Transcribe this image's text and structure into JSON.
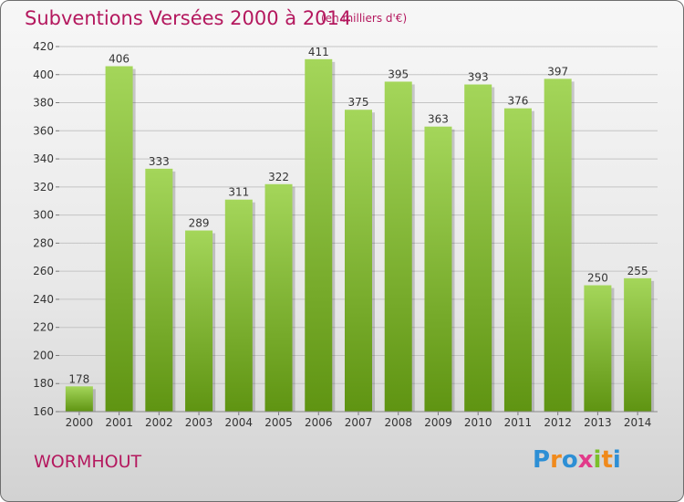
{
  "header": {
    "title": "Subventions Versées 2000 à 2014",
    "subtitle": "(en milliers d'€)"
  },
  "footer": {
    "location": "WORMHOUT",
    "logo_text": "Proxiti",
    "logo_letters": [
      {
        "char": "P",
        "color": "#2d8fd5"
      },
      {
        "char": "r",
        "color": "#f08a1c"
      },
      {
        "char": "o",
        "color": "#2d8fd5"
      },
      {
        "char": "x",
        "color": "#e23a8a"
      },
      {
        "char": "i",
        "color": "#7bbf2a"
      },
      {
        "char": "t",
        "color": "#f08a1c"
      },
      {
        "char": "i",
        "color": "#2d8fd5"
      }
    ]
  },
  "colors": {
    "title": "#b4185e",
    "bar_light": "#a4d65a",
    "bar_dark": "#5f9412",
    "grid": "#c4c4c4",
    "text": "#333333"
  },
  "chart_data": {
    "type": "bar",
    "title": "Subventions Versées 2000 à 2014",
    "subtitle": "(en milliers d'€)",
    "xlabel": "",
    "ylabel": "",
    "categories": [
      "2000",
      "2001",
      "2002",
      "2003",
      "2004",
      "2005",
      "2006",
      "2007",
      "2008",
      "2009",
      "2010",
      "2011",
      "2012",
      "2013",
      "2014"
    ],
    "values": [
      178,
      406,
      333,
      289,
      311,
      322,
      411,
      375,
      395,
      363,
      393,
      376,
      397,
      250,
      255
    ],
    "ylim": [
      160,
      420
    ],
    "yticks": [
      160,
      180,
      200,
      220,
      240,
      260,
      280,
      300,
      320,
      340,
      360,
      380,
      400,
      420
    ],
    "grid": true,
    "legend": "none"
  }
}
